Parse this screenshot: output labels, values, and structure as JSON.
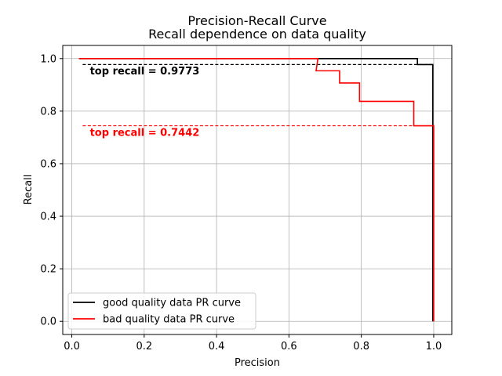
{
  "chart_data": {
    "type": "line",
    "title": "Precision-Recall Curve",
    "subtitle": "Recall dependence on data quality",
    "xlabel": "Precision",
    "ylabel": "Recall",
    "xlim": [
      -0.025,
      1.05
    ],
    "ylim": [
      -0.05,
      1.05
    ],
    "xticks": [
      0.0,
      0.2,
      0.4,
      0.6,
      0.8,
      1.0
    ],
    "xtick_labels": [
      "0.0",
      "0.2",
      "0.4",
      "0.6",
      "0.8",
      "1.0"
    ],
    "yticks": [
      0.0,
      0.2,
      0.4,
      0.6,
      0.8,
      1.0
    ],
    "ytick_labels": [
      "0.0",
      "0.2",
      "0.4",
      "0.6",
      "0.8",
      "1.0"
    ],
    "grid": true,
    "legend_position": "lower-left",
    "series": [
      {
        "name": "good quality data PR curve",
        "color": "#000000",
        "x": [
          0.02,
          0.955,
          0.955,
          0.9975,
          0.9975
        ],
        "y": [
          1.0,
          1.0,
          0.9773,
          0.9773,
          0.0
        ]
      },
      {
        "name": "bad quality data PR curve",
        "color": "#ff0000",
        "x": [
          0.02,
          0.68,
          0.675,
          0.74,
          0.74,
          0.795,
          0.795,
          0.945,
          0.945,
          1.0,
          1.0
        ],
        "y": [
          1.0,
          1.0,
          0.9535,
          0.9535,
          0.907,
          0.907,
          0.837,
          0.837,
          0.7442,
          0.7442,
          0.0
        ]
      }
    ],
    "reference_lines": [
      {
        "y": 0.9773,
        "x_start": 0.03,
        "x_end": 1.0,
        "color": "#000000",
        "style": "dashed"
      },
      {
        "y": 0.7442,
        "x_start": 0.03,
        "x_end": 1.0,
        "color": "#ff0000",
        "style": "dashed"
      }
    ],
    "annotations": [
      {
        "text": "top recall = 0.9773",
        "x": 0.05,
        "y": 0.94,
        "color": "#000000"
      },
      {
        "text": "top recall = 0.7442",
        "x": 0.05,
        "y": 0.705,
        "color": "#ff0000"
      }
    ]
  }
}
